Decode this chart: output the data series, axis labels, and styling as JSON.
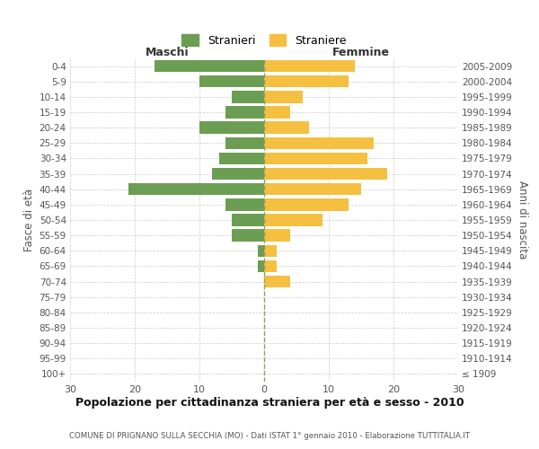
{
  "age_groups": [
    "100+",
    "95-99",
    "90-94",
    "85-89",
    "80-84",
    "75-79",
    "70-74",
    "65-69",
    "60-64",
    "55-59",
    "50-54",
    "45-49",
    "40-44",
    "35-39",
    "30-34",
    "25-29",
    "20-24",
    "15-19",
    "10-14",
    "5-9",
    "0-4"
  ],
  "birth_years": [
    "≤ 1909",
    "1910-1914",
    "1915-1919",
    "1920-1924",
    "1925-1929",
    "1930-1934",
    "1935-1939",
    "1940-1944",
    "1945-1949",
    "1950-1954",
    "1955-1959",
    "1960-1964",
    "1965-1969",
    "1970-1974",
    "1975-1979",
    "1980-1984",
    "1985-1989",
    "1990-1994",
    "1995-1999",
    "2000-2004",
    "2005-2009"
  ],
  "maschi": [
    0,
    0,
    0,
    0,
    0,
    0,
    0,
    1,
    1,
    5,
    5,
    6,
    21,
    8,
    7,
    6,
    10,
    6,
    5,
    10,
    17
  ],
  "femmine": [
    0,
    0,
    0,
    0,
    0,
    0,
    4,
    2,
    2,
    4,
    9,
    13,
    15,
    19,
    16,
    17,
    7,
    4,
    6,
    13,
    14
  ],
  "maschi_color": "#6b9e52",
  "femmine_color": "#f5c040",
  "background_color": "#ffffff",
  "grid_color": "#cccccc",
  "center_line_color": "#999966",
  "title": "Popolazione per cittadinanza straniera per età e sesso - 2010",
  "subtitle": "COMUNE DI PRIGNANO SULLA SECCHIA (MO) - Dati ISTAT 1° gennaio 2010 - Elaborazione TUTTITALIA.IT",
  "xlabel_left": "Maschi",
  "xlabel_right": "Femmine",
  "ylabel_left": "Fasce di età",
  "ylabel_right": "Anni di nascita",
  "legend_maschi": "Stranieri",
  "legend_femmine": "Straniere",
  "xlim": 30,
  "tick_color": "#888888",
  "label_color": "#555555"
}
